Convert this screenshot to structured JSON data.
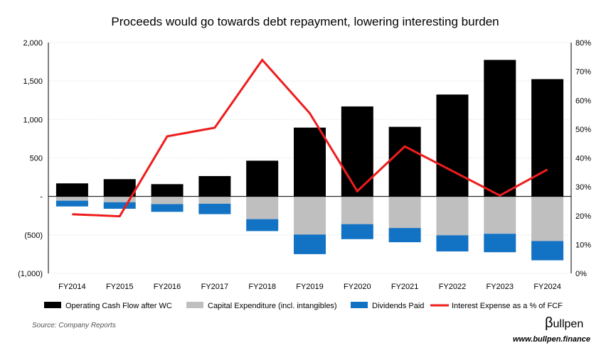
{
  "chart_data": {
    "type": "bar",
    "title": "Proceeds would go towards debt repayment, lowering interesting burden",
    "categories": [
      "FY2014",
      "FY2015",
      "FY2016",
      "FY2017",
      "FY2018",
      "FY2019",
      "FY2020",
      "FY2021",
      "FY2022",
      "FY2023",
      "FY2024"
    ],
    "series": [
      {
        "name": "Operating Cash Flow after WC",
        "kind": "bar",
        "axis": "left",
        "color": "#000000",
        "values": [
          170,
          225,
          160,
          265,
          465,
          895,
          1170,
          905,
          1325,
          1775,
          1525
        ]
      },
      {
        "name": "Capital Expenditure (incl. intangibles)",
        "kind": "bar",
        "axis": "left",
        "color": "#bfbfbf",
        "values": [
          -55,
          -75,
          -100,
          -95,
          -295,
          -495,
          -360,
          -410,
          -505,
          -485,
          -580
        ]
      },
      {
        "name": "Dividends Paid",
        "kind": "bar",
        "axis": "left",
        "color": "#1272c4",
        "values": [
          -75,
          -85,
          -100,
          -135,
          -155,
          -255,
          -195,
          -185,
          -210,
          -240,
          -250
        ]
      },
      {
        "name": "Interest Expense as a % of FCF",
        "kind": "line",
        "axis": "right",
        "color": "#ee1c1c",
        "values": [
          20.5,
          19.8,
          47.5,
          50.5,
          74,
          55.5,
          28.5,
          44,
          35.5,
          27,
          36
        ]
      }
    ],
    "y_left": {
      "ylim": [
        -1000,
        2000
      ],
      "ticks": [
        2000,
        1500,
        1000,
        500,
        0,
        -500,
        -1000
      ],
      "tick_labels": [
        "2,000",
        "1,500",
        "1,000",
        "500",
        "-",
        "(500)",
        "(1,000)"
      ]
    },
    "y_right": {
      "ylim": [
        0,
        80
      ],
      "ticks": [
        80,
        70,
        60,
        50,
        40,
        30,
        20,
        10,
        0
      ],
      "tick_labels": [
        "80%",
        "70%",
        "60%",
        "50%",
        "40%",
        "30%",
        "20%",
        "10%",
        "0%"
      ]
    },
    "grid": true,
    "legend": "bottom"
  },
  "footer": {
    "source": "Source: Company Reports",
    "brand_symbol": "β",
    "brand_name": "ullpen",
    "url": "www.bullpen.finance"
  }
}
